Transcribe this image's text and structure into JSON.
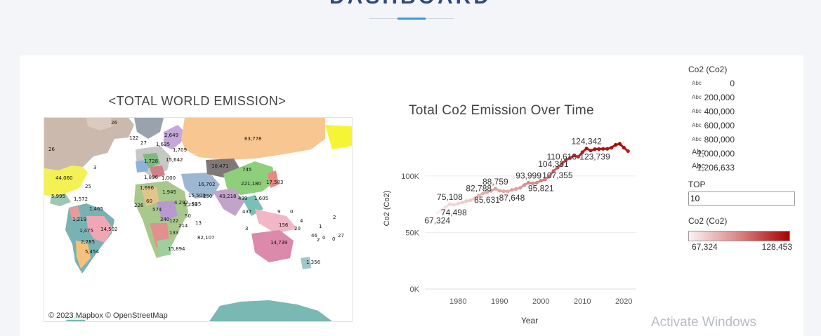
{
  "page": {
    "heading": "DASHBOARD"
  },
  "map": {
    "title": "<TOTAL WORLD EMISSION>",
    "attribution": "© 2023 Mapbox  © OpenStreetMap",
    "labels": [
      "26",
      "122",
      "2,649",
      "27",
      "1,635",
      "1,709",
      "26",
      "63,778",
      "1,728",
      "15,642",
      "10,471",
      "44,060",
      "3",
      "745",
      "1,896",
      "1,000",
      "1,696",
      "25",
      "1,945",
      "16,702",
      "250",
      "221,180",
      "17,583",
      "5,995",
      "1,572",
      "1,465",
      "226",
      "60",
      "574",
      "15,503",
      "5,253",
      "555",
      "49,218",
      "1,605",
      "499",
      "437",
      "9",
      "0",
      "1,219",
      "240",
      "4,292",
      "13",
      "50",
      "14,502",
      "1,475",
      "122",
      "2,285",
      "214",
      "82,107",
      "133",
      "156",
      "3",
      "2",
      "1",
      "20",
      "46",
      "0",
      "27",
      "5,454",
      "15,894",
      "14,739",
      "2",
      "0",
      "1,356",
      "4"
    ]
  },
  "chart_data": {
    "type": "line",
    "title": "Total Co2 Emission Over Time",
    "xlabel": "Year",
    "ylabel": "Co2 (Co2)",
    "xlim": [
      1972,
      2023
    ],
    "ylim": [
      0,
      128453
    ],
    "x_ticks": [
      "1980",
      "1990",
      "2000",
      "2010",
      "2020"
    ],
    "y_ticks": [
      "0K",
      "50K",
      "100K"
    ],
    "color_range": [
      "#fcf2f2",
      "#aa0000"
    ],
    "points": [
      [
        1975,
        67324
      ],
      [
        1976,
        70000
      ],
      [
        1977,
        72500
      ],
      [
        1978,
        75108
      ],
      [
        1979,
        74498
      ],
      [
        1980,
        75500
      ],
      [
        1981,
        76500
      ],
      [
        1982,
        77800
      ],
      [
        1983,
        78500
      ],
      [
        1984,
        80000
      ],
      [
        1985,
        82788
      ],
      [
        1986,
        84500
      ],
      [
        1987,
        85631
      ],
      [
        1988,
        86800
      ],
      [
        1989,
        88759
      ],
      [
        1990,
        87000
      ],
      [
        1991,
        86500
      ],
      [
        1992,
        86300
      ],
      [
        1993,
        87648
      ],
      [
        1994,
        88500
      ],
      [
        1995,
        89500
      ],
      [
        1996,
        92000
      ],
      [
        1997,
        93999
      ],
      [
        1998,
        93500
      ],
      [
        1999,
        94000
      ],
      [
        2000,
        95821
      ],
      [
        2001,
        97000
      ],
      [
        2002,
        99500
      ],
      [
        2003,
        104331
      ],
      [
        2004,
        107355
      ],
      [
        2005,
        110616
      ],
      [
        2006,
        114000
      ],
      [
        2007,
        116000
      ],
      [
        2008,
        118000
      ],
      [
        2009,
        117000
      ],
      [
        2010,
        121000
      ],
      [
        2011,
        124342
      ],
      [
        2012,
        122500
      ],
      [
        2013,
        123739
      ],
      [
        2014,
        123800
      ],
      [
        2015,
        124000
      ],
      [
        2016,
        124000
      ],
      [
        2017,
        125000
      ],
      [
        2018,
        127500
      ],
      [
        2019,
        128453
      ],
      [
        2020,
        125000
      ],
      [
        2021,
        122000
      ]
    ],
    "data_labels": [
      {
        "text": "67,324",
        "x": 1975,
        "y": 67324,
        "pos": "below"
      },
      {
        "text": "75,108",
        "x": 1978,
        "y": 75108,
        "pos": "above"
      },
      {
        "text": "74,498",
        "x": 1979,
        "y": 74498,
        "pos": "below"
      },
      {
        "text": "82,788",
        "x": 1985,
        "y": 82788,
        "pos": "above"
      },
      {
        "text": "85,631",
        "x": 1987,
        "y": 85631,
        "pos": "below"
      },
      {
        "text": "88,759",
        "x": 1989,
        "y": 88759,
        "pos": "above"
      },
      {
        "text": "87,648",
        "x": 1993,
        "y": 87648,
        "pos": "below"
      },
      {
        "text": "93,999",
        "x": 1997,
        "y": 93999,
        "pos": "above"
      },
      {
        "text": "95,821",
        "x": 2000,
        "y": 95821,
        "pos": "below"
      },
      {
        "text": "104,331",
        "x": 2003,
        "y": 104331,
        "pos": "above"
      },
      {
        "text": "107,355",
        "x": 2004,
        "y": 107355,
        "pos": "below"
      },
      {
        "text": "110,616",
        "x": 2005,
        "y": 110616,
        "pos": "above"
      },
      {
        "text": "124,342",
        "x": 2011,
        "y": 124342,
        "pos": "above"
      },
      {
        "text": "123,739",
        "x": 2013,
        "y": 123739,
        "pos": "below"
      }
    ]
  },
  "legend": {
    "size_title": "Co2 (Co2)",
    "abc": "Abc",
    "size_items": [
      "0",
      "200,000",
      "400,000",
      "600,000",
      "800,000",
      "1,000,000",
      "1,206,633"
    ],
    "top_label": "TOP",
    "top_value": "10",
    "color_title": "Co2 (Co2)",
    "color_min": "67,324",
    "color_max": "128,453"
  },
  "watermark": "Activate Windows"
}
